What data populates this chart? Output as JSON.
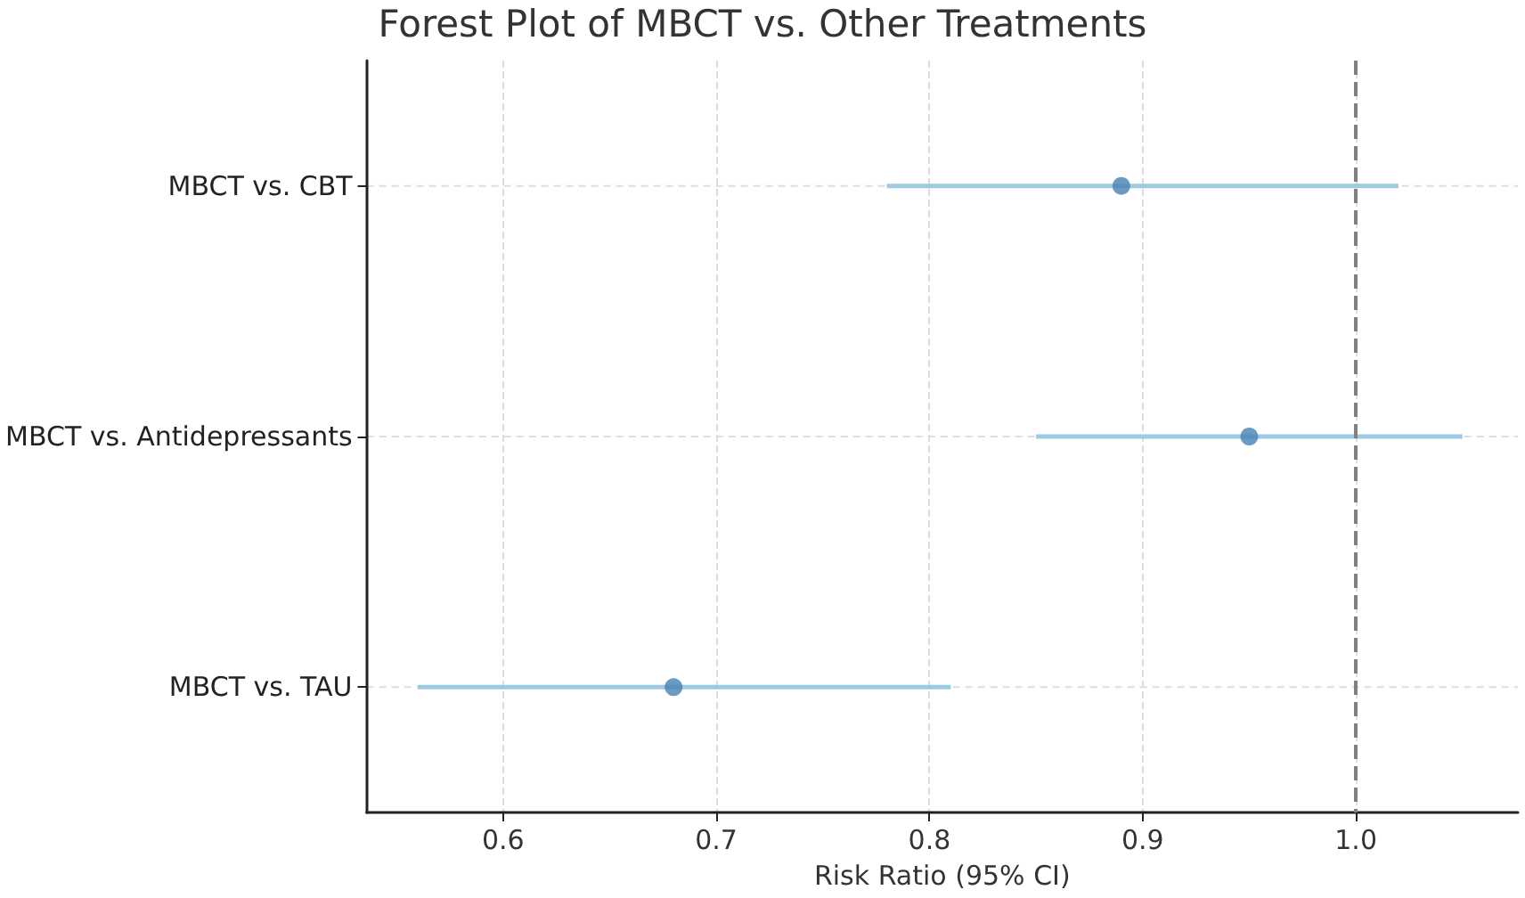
{
  "chart_data": {
    "type": "scatter",
    "title": "Forest Plot of MBCT vs. Other Treatments",
    "xlabel": "Risk Ratio (95% CI)",
    "orientation": "horizontal",
    "categories": [
      "MBCT vs. CBT",
      "MBCT vs. Antidepressants",
      "MBCT vs. TAU"
    ],
    "values": [
      0.89,
      0.95,
      0.68
    ],
    "errors": [
      [
        0.78,
        1.02
      ],
      [
        0.85,
        1.05
      ],
      [
        0.56,
        0.81
      ]
    ],
    "color": "#4682b4",
    "xlim": [
      0.536,
      1.076
    ],
    "xticks": [
      0.6,
      0.7,
      0.8,
      0.9,
      {
        "value": 1.0,
        "label": "1.0"
      }
    ],
    "ref_lines": [
      {
        "axis": "x",
        "value": 1.0,
        "color": "#808080",
        "line_style": "dashed"
      }
    ],
    "grid": true,
    "marker": "circle"
  }
}
